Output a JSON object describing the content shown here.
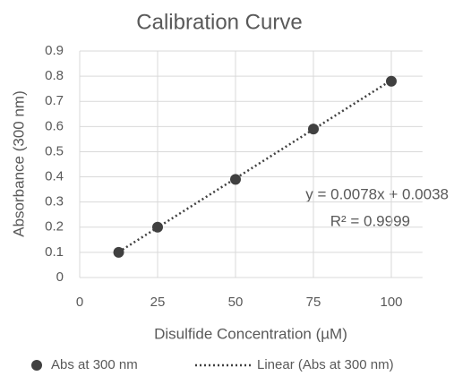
{
  "chart_data": {
    "type": "scatter",
    "title": "Calibration Curve",
    "x_label": "Disulfide Concentration (µM)",
    "y_label": "Absorbance (300 nm)",
    "series": [
      {
        "name": "Abs at 300 nm",
        "color": "#404040",
        "x": [
          12.5,
          25,
          50,
          75,
          100
        ],
        "values": [
          0.1,
          0.2,
          0.39,
          0.59,
          0.78
        ]
      }
    ],
    "trendline": {
      "name": "Linear (Abs at 300 nm)",
      "slope": 0.0078,
      "intercept": 0.0038,
      "equation": "y = 0.0078x + 0.0038",
      "r_squared": "R² = 0.9999",
      "color": "#404040"
    },
    "xlim": [
      0,
      110
    ],
    "xticks": [
      0,
      25,
      50,
      75,
      100
    ],
    "ylim": [
      0,
      0.9
    ],
    "yticks": [
      0,
      0.1,
      0.2,
      0.3,
      0.4,
      0.5,
      0.6,
      0.7,
      0.8,
      0.9
    ],
    "grid": true,
    "legend": "bottom"
  }
}
